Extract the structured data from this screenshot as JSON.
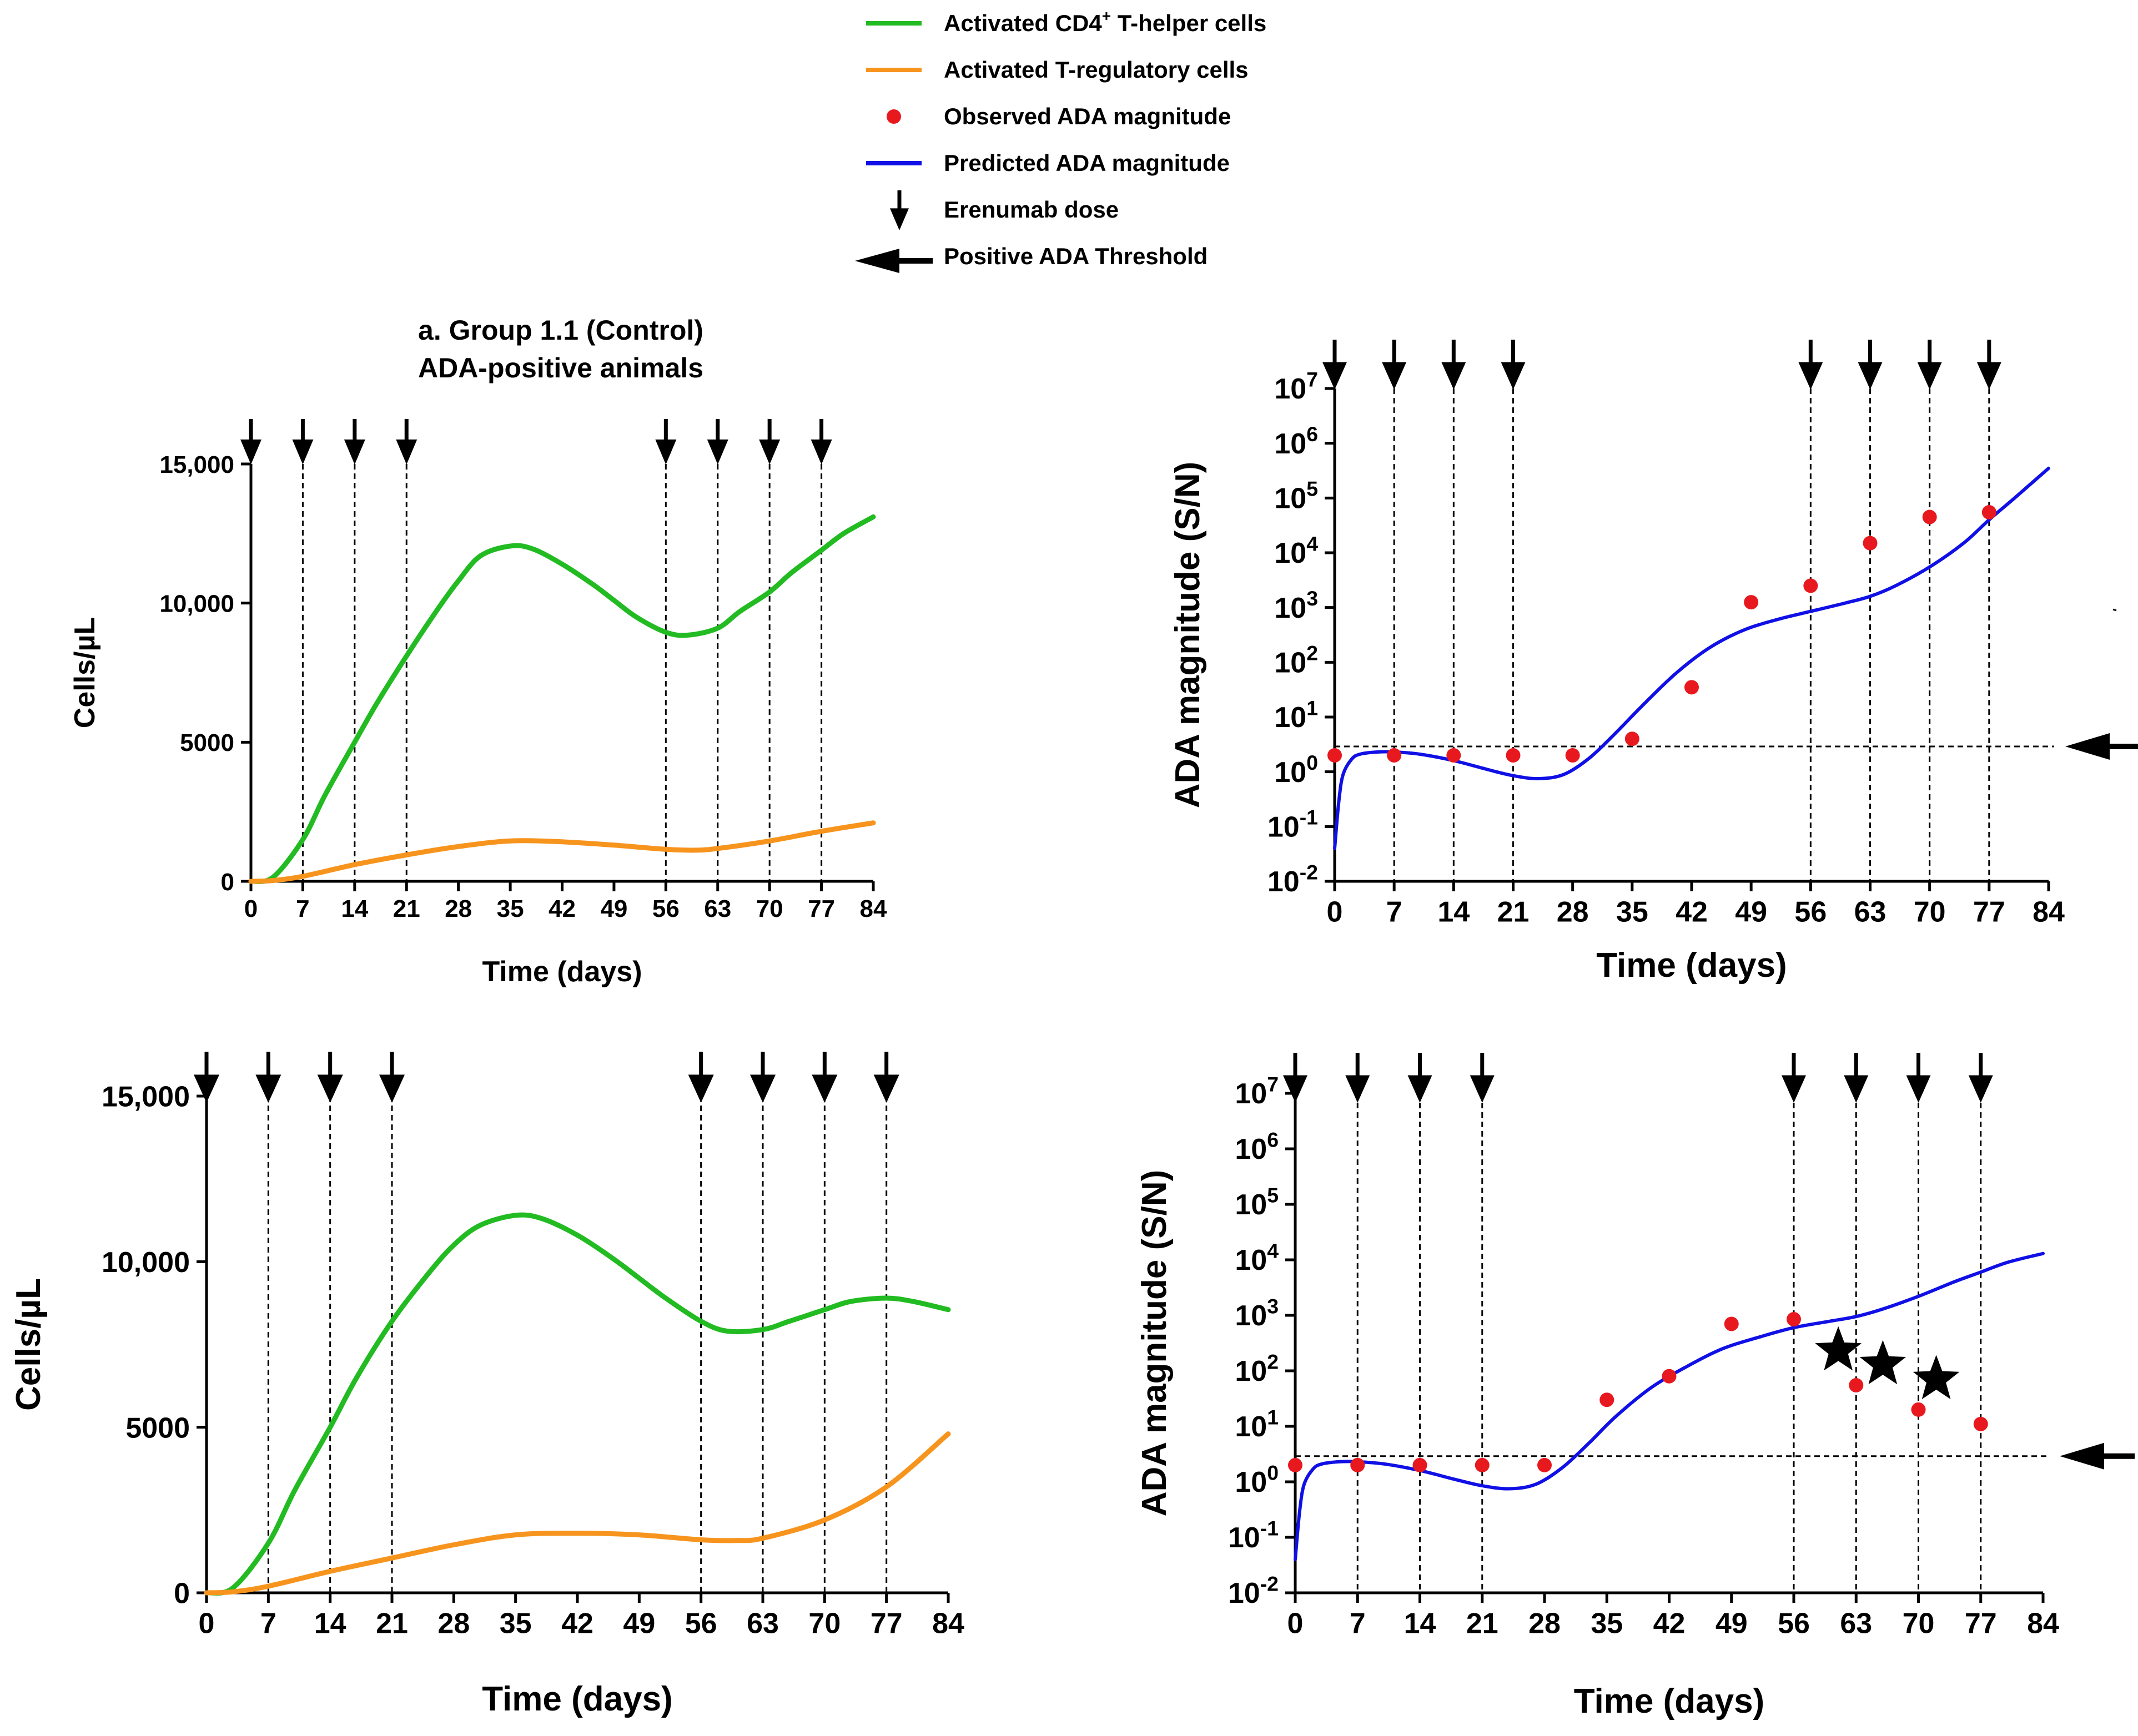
{
  "legend": {
    "items": [
      {
        "label": "Activated CD4",
        "sup": "+",
        "label_tail": " T-helper cells",
        "kind": "line",
        "color": "#22bb22"
      },
      {
        "label": "Activated T-regulatory cells",
        "sup": "",
        "label_tail": "",
        "kind": "line",
        "color": "#f7941d"
      },
      {
        "label": "Observed ADA magnitude",
        "sup": "",
        "label_tail": "",
        "kind": "dot",
        "color": "#e8191e"
      },
      {
        "label": "Predicted ADA magnitude",
        "sup": "",
        "label_tail": "",
        "kind": "line",
        "color": "#1010e6"
      },
      {
        "label": "Erenumab dose",
        "sup": "",
        "label_tail": "",
        "kind": "down-arrow",
        "color": "#000000"
      },
      {
        "label": "Positive ADA Threshold",
        "sup": "",
        "label_tail": "",
        "kind": "left-arrow",
        "color": "#000000"
      }
    ]
  },
  "chart_data": [
    {
      "id": "a-cells",
      "type": "line",
      "title": "a. Group 1.1 (Control)",
      "subtitle": "ADA-positive animals",
      "xlabel": "Time (days)",
      "ylabel": "Cells/µL",
      "xlim": [
        0,
        84
      ],
      "ylim": [
        0,
        15000
      ],
      "x_ticks": [
        0,
        7,
        14,
        21,
        28,
        35,
        42,
        49,
        56,
        63,
        70,
        77,
        84
      ],
      "y_ticks": [
        0,
        5000,
        10000,
        15000
      ],
      "y_tick_labels": [
        "0",
        "5000",
        "10,000",
        "15,000"
      ],
      "dose_days": [
        0,
        7,
        14,
        21,
        56,
        63,
        70,
        77
      ],
      "series": [
        {
          "name": "Activated CD4+ T-helper cells",
          "color": "#22bb22",
          "x": [
            0,
            3,
            7,
            10,
            14,
            17,
            21,
            25,
            28,
            31,
            35,
            38,
            42,
            46,
            49,
            52,
            56,
            59,
            63,
            66,
            70,
            73,
            77,
            80,
            84
          ],
          "y": [
            0,
            150,
            1500,
            3100,
            5000,
            6400,
            8100,
            9700,
            10800,
            11700,
            12050,
            11950,
            11400,
            10700,
            10100,
            9500,
            8950,
            8850,
            9100,
            9700,
            10400,
            11100,
            11900,
            12500,
            13100
          ]
        },
        {
          "name": "Activated T-regulatory cells",
          "color": "#f7941d",
          "x": [
            0,
            3,
            7,
            14,
            21,
            28,
            35,
            42,
            49,
            56,
            60,
            63,
            70,
            77,
            84
          ],
          "y": [
            0,
            30,
            180,
            600,
            950,
            1250,
            1450,
            1420,
            1300,
            1150,
            1120,
            1180,
            1450,
            1800,
            2100
          ]
        }
      ]
    },
    {
      "id": "a-ada",
      "type": "line",
      "title": "",
      "xlabel": "Time (days)",
      "ylabel": "ADA magnitude (S/N)",
      "yscale": "log",
      "xlim": [
        0,
        84
      ],
      "ylim_exp": [
        -2,
        7
      ],
      "x_ticks": [
        0,
        7,
        14,
        21,
        28,
        35,
        42,
        49,
        56,
        63,
        70,
        77,
        84
      ],
      "y_tick_exponents": [
        -2,
        -1,
        0,
        1,
        2,
        3,
        4,
        5,
        6,
        7
      ],
      "y_tick_base": "10",
      "dose_days": [
        0,
        7,
        14,
        21,
        56,
        63,
        70,
        77
      ],
      "threshold": 2.9,
      "observed": {
        "name": "Observed ADA magnitude",
        "color": "#e8191e",
        "x": [
          0,
          7,
          14,
          21,
          28,
          35,
          42,
          49,
          56,
          63,
          70,
          77
        ],
        "y": [
          2,
          2,
          2,
          2,
          2,
          4,
          35,
          1250,
          2500,
          15000,
          45000,
          55000
        ]
      },
      "predicted": {
        "name": "Predicted ADA magnitude",
        "color": "#1010e6",
        "x": [
          0,
          0.5,
          1,
          2,
          3,
          5,
          7,
          10,
          14,
          18,
          21,
          24,
          27,
          30,
          33,
          36,
          40,
          44,
          48,
          52,
          56,
          60,
          63,
          66,
          70,
          74,
          77,
          80,
          84
        ],
        "y": [
          0.04,
          0.3,
          0.9,
          1.7,
          2.1,
          2.3,
          2.3,
          2.1,
          1.6,
          1.1,
          0.85,
          0.75,
          0.9,
          1.8,
          5,
          15,
          60,
          180,
          380,
          600,
          850,
          1200,
          1600,
          2500,
          5500,
          15000,
          40000,
          100000,
          350000
        ]
      }
    },
    {
      "id": "b-cells",
      "type": "line",
      "title": "",
      "xlabel": "Time (days)",
      "ylabel": "Cells/µL",
      "xlim": [
        0,
        84
      ],
      "ylim": [
        0,
        15000
      ],
      "x_ticks": [
        0,
        7,
        14,
        21,
        28,
        35,
        42,
        49,
        56,
        63,
        70,
        77,
        84
      ],
      "y_ticks": [
        0,
        5000,
        10000,
        15000
      ],
      "y_tick_labels": [
        "0",
        "5000",
        "10,000",
        "15,000"
      ],
      "dose_days": [
        0,
        7,
        14,
        21,
        56,
        63,
        70,
        77
      ],
      "series": [
        {
          "name": "Activated CD4+ T-helper cells",
          "color": "#22bb22",
          "x": [
            0,
            3,
            7,
            10,
            14,
            17,
            21,
            25,
            28,
            31,
            35,
            38,
            42,
            46,
            49,
            52,
            56,
            59,
            63,
            66,
            70,
            73,
            77,
            80,
            84
          ],
          "y": [
            0,
            150,
            1500,
            3100,
            5000,
            6500,
            8200,
            9600,
            10500,
            11100,
            11400,
            11300,
            10800,
            10100,
            9500,
            8900,
            8200,
            7900,
            7950,
            8200,
            8550,
            8800,
            8900,
            8800,
            8550
          ]
        },
        {
          "name": "Activated T-regulatory cells",
          "color": "#f7941d",
          "x": [
            0,
            3,
            7,
            14,
            21,
            28,
            35,
            42,
            49,
            56,
            60,
            63,
            70,
            77,
            84
          ],
          "y": [
            0,
            30,
            200,
            650,
            1050,
            1450,
            1750,
            1800,
            1750,
            1600,
            1580,
            1650,
            2200,
            3200,
            4800
          ]
        }
      ]
    },
    {
      "id": "b-ada",
      "type": "line",
      "title": "",
      "xlabel": "Time (days)",
      "ylabel": "ADA magnitude (S/N)",
      "yscale": "log",
      "xlim": [
        0,
        84
      ],
      "ylim_exp": [
        -2,
        7
      ],
      "x_ticks": [
        0,
        7,
        14,
        21,
        28,
        35,
        42,
        49,
        56,
        63,
        70,
        77,
        84
      ],
      "y_tick_exponents": [
        -2,
        -1,
        0,
        1,
        2,
        3,
        4,
        5,
        6,
        7
      ],
      "y_tick_base": "10",
      "dose_days": [
        0,
        7,
        14,
        21,
        56,
        63,
        70,
        77
      ],
      "threshold": 2.9,
      "observed": {
        "name": "Observed ADA magnitude",
        "color": "#e8191e",
        "x": [
          0,
          7,
          14,
          21,
          28,
          35,
          42,
          49,
          56,
          63,
          70,
          77
        ],
        "y": [
          2,
          2,
          2,
          2,
          2,
          30,
          80,
          700,
          850,
          55,
          20,
          11
        ]
      },
      "predicted": {
        "name": "Predicted ADA magnitude",
        "color": "#1010e6",
        "x": [
          0,
          0.5,
          1,
          2,
          3,
          5,
          7,
          10,
          14,
          18,
          21,
          24,
          27,
          30,
          33,
          36,
          40,
          44,
          48,
          52,
          56,
          60,
          63,
          66,
          70,
          74,
          77,
          80,
          84
        ],
        "y": [
          0.04,
          0.3,
          0.9,
          1.7,
          2.1,
          2.3,
          2.3,
          2.1,
          1.6,
          1.1,
          0.85,
          0.75,
          0.9,
          1.8,
          5,
          15,
          50,
          120,
          250,
          400,
          600,
          780,
          950,
          1300,
          2200,
          4000,
          6000,
          9000,
          13000
        ]
      },
      "stars_after_days": [
        61,
        66,
        72
      ]
    }
  ]
}
